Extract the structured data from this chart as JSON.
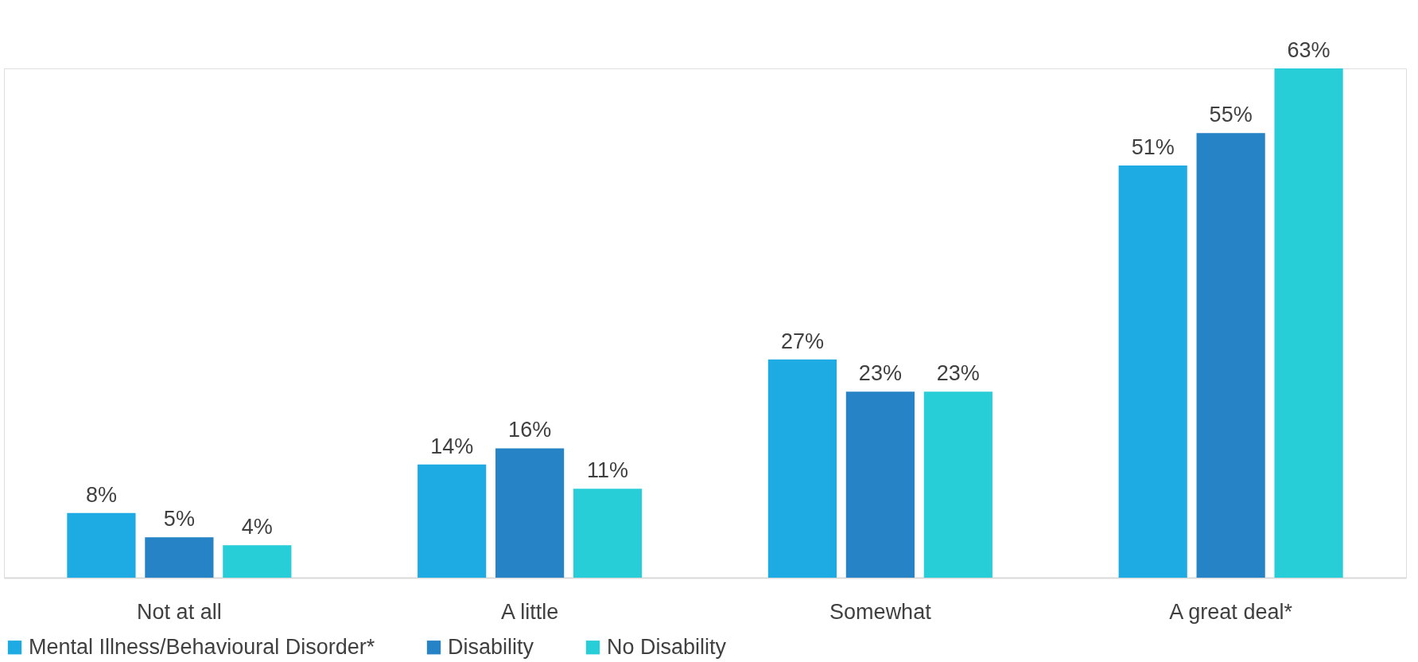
{
  "chart_data": {
    "type": "bar",
    "categories": [
      "Not at all",
      "A little",
      "Somewhat",
      "A great deal*"
    ],
    "series": [
      {
        "name": "Mental Illness/Behavioural Disorder*",
        "color": "#1eabe3",
        "values": [
          8,
          14,
          27,
          51
        ],
        "value_labels": [
          "8%",
          "14%",
          "27%",
          "51%"
        ]
      },
      {
        "name": "Disability",
        "color": "#2683c6",
        "values": [
          5,
          16,
          23,
          55
        ],
        "value_labels": [
          "5%",
          "16%",
          "23%",
          "55%"
        ]
      },
      {
        "name": "No Disability",
        "color": "#27ced7",
        "values": [
          4,
          11,
          23,
          63
        ],
        "value_labels": [
          "4%",
          "11%",
          "23%",
          "63%"
        ]
      }
    ],
    "legend": "bottom",
    "grid": false
  }
}
